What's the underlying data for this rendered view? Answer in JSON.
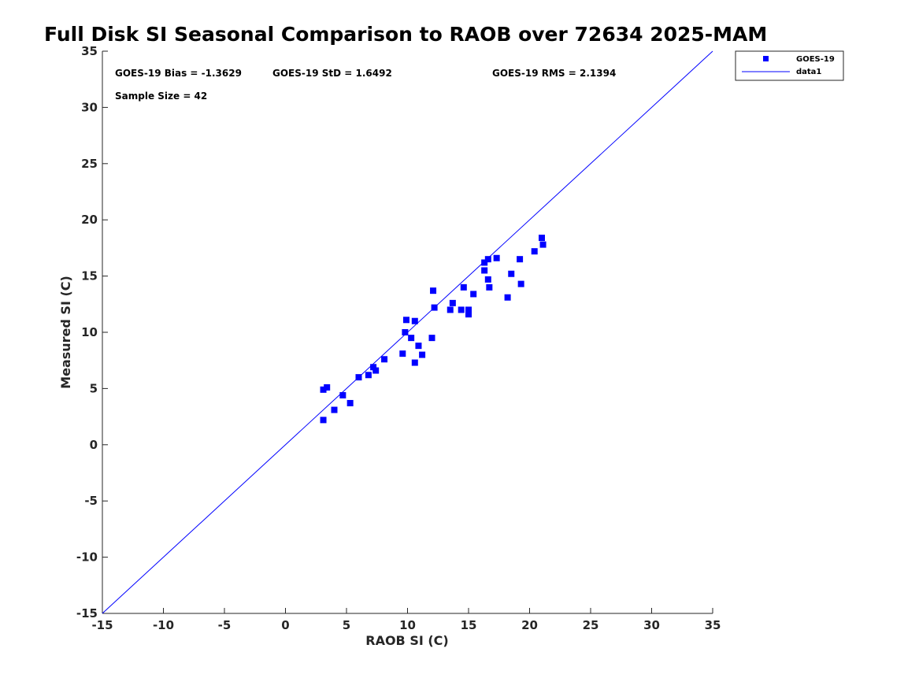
{
  "chart_data": {
    "type": "scatter",
    "title": "Full Disk SI Seasonal Comparison to RAOB over 72634 2025-MAM",
    "xlabel": "RAOB SI (C)",
    "ylabel": "Measured SI (C)",
    "xlim": [
      -15,
      35
    ],
    "ylim": [
      -15,
      35
    ],
    "xticks": [
      -15,
      -10,
      -5,
      0,
      5,
      10,
      15,
      20,
      25,
      30,
      35
    ],
    "yticks": [
      -15,
      -10,
      -5,
      0,
      5,
      10,
      15,
      20,
      25,
      30,
      35
    ],
    "xtick_labels": [
      "-15",
      "-10",
      "-5",
      "0",
      "5",
      "10",
      "15",
      "20",
      "25",
      "30",
      "35"
    ],
    "ytick_labels": [
      "-15",
      "-10",
      "-5",
      "0",
      "5",
      "10",
      "15",
      "20",
      "25",
      "30",
      "35"
    ],
    "grid": false,
    "legend_position": "top-right",
    "annotations": [
      "GOES-19 Bias = -1.3629",
      "GOES-19 StD = 1.6492",
      "GOES-19 RMS = 2.1394",
      "Sample Size = 42"
    ],
    "series": [
      {
        "name": "GOES-19",
        "kind": "scatter",
        "marker": "square",
        "color": "#0000ff",
        "points": [
          [
            3.1,
            2.2
          ],
          [
            3.1,
            4.9
          ],
          [
            3.4,
            5.1
          ],
          [
            4.0,
            3.1
          ],
          [
            4.7,
            4.4
          ],
          [
            5.3,
            3.7
          ],
          [
            6.0,
            6.0
          ],
          [
            6.8,
            6.2
          ],
          [
            7.2,
            6.9
          ],
          [
            7.4,
            6.6
          ],
          [
            8.1,
            7.6
          ],
          [
            9.6,
            8.1
          ],
          [
            9.8,
            10.0
          ],
          [
            9.9,
            11.1
          ],
          [
            10.3,
            9.5
          ],
          [
            10.6,
            11.0
          ],
          [
            10.6,
            7.3
          ],
          [
            10.9,
            8.8
          ],
          [
            11.2,
            8.0
          ],
          [
            12.0,
            9.5
          ],
          [
            12.1,
            13.7
          ],
          [
            12.2,
            12.2
          ],
          [
            13.5,
            12.0
          ],
          [
            13.7,
            12.6
          ],
          [
            14.4,
            12.0
          ],
          [
            14.6,
            14.0
          ],
          [
            15.0,
            11.6
          ],
          [
            15.0,
            12.0
          ],
          [
            15.4,
            13.4
          ],
          [
            16.3,
            16.2
          ],
          [
            16.3,
            15.5
          ],
          [
            16.6,
            14.7
          ],
          [
            16.6,
            16.5
          ],
          [
            16.7,
            14.0
          ],
          [
            17.3,
            16.6
          ],
          [
            18.2,
            13.1
          ],
          [
            18.5,
            15.2
          ],
          [
            19.2,
            16.5
          ],
          [
            19.3,
            14.3
          ],
          [
            20.4,
            17.2
          ],
          [
            21.0,
            18.4
          ],
          [
            21.1,
            17.8
          ]
        ]
      },
      {
        "name": "data1",
        "kind": "line",
        "color": "#0000ff",
        "x": [
          -15,
          35
        ],
        "y": [
          -15,
          35
        ]
      }
    ]
  }
}
